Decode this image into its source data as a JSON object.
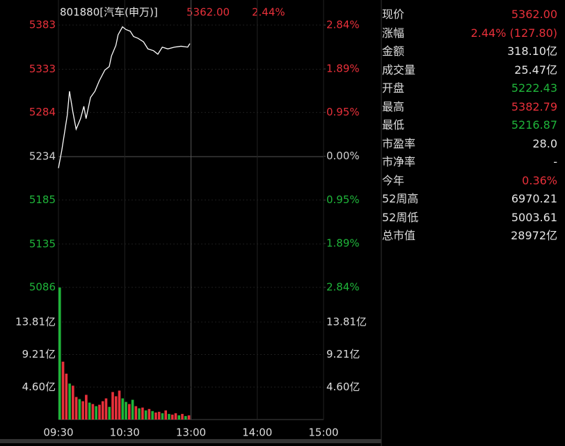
{
  "header": {
    "code": "801880[汽车(申万)]",
    "price": "5362.00",
    "change": "2.44%"
  },
  "chart_data": [
    {
      "type": "line",
      "color": "#ffffff",
      "up_color": "#e8303a",
      "down_color": "#1fb53a",
      "flat_color": "#d0d0d0",
      "x": [
        0,
        3,
        5,
        8,
        10,
        13,
        16,
        20,
        23,
        25,
        29,
        33,
        37,
        42,
        46,
        48,
        52,
        54,
        58,
        61,
        65,
        68,
        72,
        77,
        81,
        86,
        90,
        94,
        99,
        105,
        111,
        117,
        119
      ],
      "values": [
        5221,
        5241,
        5257,
        5281,
        5308,
        5285,
        5265,
        5277,
        5291,
        5277,
        5301,
        5308,
        5320,
        5332,
        5336,
        5348,
        5360,
        5372,
        5381,
        5378,
        5376,
        5370,
        5368,
        5364,
        5356,
        5354,
        5350,
        5358,
        5356,
        5358,
        5359,
        5358,
        5362
      ],
      "xlim": [
        0,
        240
      ],
      "xticks": [
        {
          "value": 0,
          "label": "09:30"
        },
        {
          "value": 60,
          "label": "10:30"
        },
        {
          "value": 120,
          "label": "13:00"
        },
        {
          "value": 180,
          "label": "14:00"
        },
        {
          "value": 240,
          "label": "15:00"
        }
      ],
      "ylim": [
        5086,
        5383
      ],
      "yticks": [
        5383,
        5333,
        5284,
        5234,
        5185,
        5135,
        5086
      ],
      "y2lim": [
        -2.84,
        2.84
      ],
      "y2ticks": [
        {
          "value": 2.84,
          "label": "2.84%"
        },
        {
          "value": 1.89,
          "label": "1.89%"
        },
        {
          "value": 0.95,
          "label": "0.95%"
        },
        {
          "value": 0,
          "label": "0.00%"
        },
        {
          "value": -0.95,
          "label": "0.95%"
        },
        {
          "value": -1.89,
          "label": "1.89%"
        },
        {
          "value": -2.84,
          "label": "2.84%"
        }
      ]
    },
    {
      "type": "bar",
      "x": [
        0,
        3,
        6,
        9,
        12,
        15,
        18,
        21,
        24,
        27,
        30,
        33,
        36,
        39,
        42,
        45,
        48,
        51,
        54,
        57,
        60,
        63,
        66,
        69,
        72,
        75,
        78,
        81,
        84,
        87,
        90,
        93,
        96,
        99,
        102,
        105,
        108,
        111,
        114,
        117
      ],
      "values": [
        18.7,
        8.2,
        6.5,
        5.1,
        4.8,
        3.2,
        2.9,
        2.6,
        3.5,
        2.4,
        2.2,
        1.9,
        2.1,
        2.6,
        3.0,
        1.8,
        3.9,
        3.3,
        4.1,
        3.0,
        2.5,
        2.2,
        2.8,
        1.9,
        1.6,
        1.7,
        1.3,
        1.5,
        1.2,
        1.0,
        1.1,
        0.9,
        1.3,
        0.8,
        0.7,
        0.9,
        0.6,
        0.8,
        0.5,
        0.6
      ],
      "colors": [
        "#1fb53a",
        "#e8303a",
        "#e8303a",
        "#1fb53a",
        "#e8303a",
        "#e8303a",
        "#1fb53a",
        "#e8303a",
        "#e8303a",
        "#1fb53a",
        "#e8303a",
        "#1fb53a",
        "#e8303a",
        "#e8303a",
        "#e8303a",
        "#1fb53a",
        "#e8303a",
        "#e8303a",
        "#e8303a",
        "#1fb53a",
        "#1fb53a",
        "#e8303a",
        "#1fb53a",
        "#e8303a",
        "#1fb53a",
        "#e8303a",
        "#1fb53a",
        "#e8303a",
        "#1fb53a",
        "#e8303a",
        "#e8303a",
        "#1fb53a",
        "#e8303a",
        "#1fb53a",
        "#e8303a",
        "#e8303a",
        "#1fb53a",
        "#e8303a",
        "#1fb53a",
        "#e8303a"
      ],
      "ylim": [
        0,
        18.72
      ],
      "yticks": [
        {
          "value": 13.81,
          "label": "13.81亿"
        },
        {
          "value": 9.21,
          "label": "9.21亿"
        },
        {
          "value": 4.6,
          "label": "4.60亿"
        }
      ]
    }
  ],
  "quote_panel": {
    "rows": [
      {
        "label": "现价",
        "value": "5362.00",
        "color": "#e8303a"
      },
      {
        "label": "涨幅",
        "value": "2.44% (127.80)",
        "color": "#e8303a"
      },
      {
        "label": "金额",
        "value": "318.10亿",
        "color": "#e6e6e6"
      },
      {
        "label": "成交量",
        "value": "25.47亿",
        "color": "#e6e6e6"
      },
      {
        "label": "开盘",
        "value": "5222.43",
        "color": "#1fb53a"
      },
      {
        "label": "最高",
        "value": "5382.79",
        "color": "#e8303a"
      },
      {
        "label": "最低",
        "value": "5216.87",
        "color": "#1fb53a"
      },
      {
        "label": "市盈率",
        "value": "28.0",
        "color": "#e6e6e6"
      },
      {
        "label": "市净率",
        "value": "-",
        "color": "#e6e6e6"
      },
      {
        "label": "今年",
        "value": "0.36%",
        "color": "#e8303a"
      },
      {
        "label": "52周高",
        "value": "6970.21",
        "color": "#e6e6e6"
      },
      {
        "label": "52周低",
        "value": "5003.61",
        "color": "#e6e6e6"
      },
      {
        "label": "总市值",
        "value": "28972亿",
        "color": "#e6e6e6"
      }
    ]
  }
}
